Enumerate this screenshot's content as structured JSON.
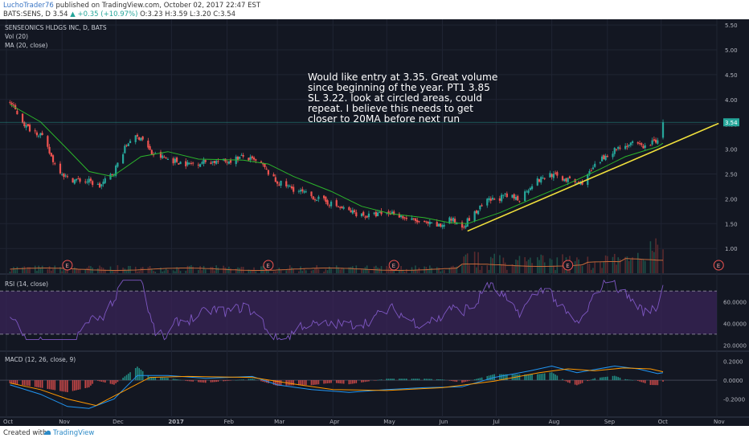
{
  "header": {
    "author": "LuchoTrader76",
    "published_text": "published on TradingView.com, October 02, 2017 22:47 EST",
    "symbol": "BATS:SENS, D",
    "last": "3.54",
    "change": "+0.35 (+10.97%)",
    "ohlc": "O:3.23 H:3.59 L:3.20 C:3.54"
  },
  "legend": {
    "title": "SENSEONICS HLDGS INC, D, BATS",
    "vol": "Vol (20)",
    "ma": "MA (20, close)",
    "rsi": "RSI (14, close)",
    "macd": "MACD (12, 26, close, 9)"
  },
  "annotation": "Would like entry at 3.35. Great volume since beginning of the year. PT1 3.85 SL 3.22. look at circled areas, could repeat. I believe this needs to get closer to 20MA before next run",
  "price_tag": "3.54",
  "earnings_marker": "E",
  "footer": {
    "created_with": "Created with",
    "brand": "TradingView"
  },
  "colors": {
    "background": "#131722",
    "up": "#26a69a",
    "down": "#ef5350",
    "ma": "#2bb52b",
    "trendline": "#f0e03c",
    "rsi": "#7e57c2",
    "macd": "#2196f3",
    "signal": "#ff9800"
  },
  "chart_data": {
    "type": "candlestick",
    "title": "SENSEONICS HLDGS INC, D, BATS",
    "x_ticks": [
      "Oct",
      "Nov",
      "Dec",
      "2017",
      "Feb",
      "Mar",
      "Apr",
      "May",
      "Jun",
      "Jul",
      "Aug",
      "Sep",
      "Oct",
      "Nov"
    ],
    "price_axis": [
      "5.50",
      "5.00",
      "4.50",
      "4.00",
      "3.50",
      "3.00",
      "2.50",
      "2.00",
      "1.50",
      "1.00"
    ],
    "ylim": [
      0.55,
      5.55
    ],
    "close_path": [
      [
        "2016-10-03",
        3.95
      ],
      [
        "2016-10-12",
        3.45
      ],
      [
        "2016-10-20",
        3.3
      ],
      [
        "2016-10-28",
        2.7
      ],
      [
        "2016-11-04",
        2.4
      ],
      [
        "2016-11-16",
        2.35
      ],
      [
        "2016-11-22",
        2.25
      ],
      [
        "2016-11-30",
        2.55
      ],
      [
        "2016-12-05",
        2.95
      ],
      [
        "2016-12-09",
        3.2
      ],
      [
        "2016-12-15",
        3.25
      ],
      [
        "2016-12-21",
        2.9
      ],
      [
        "2016-12-30",
        2.8
      ],
      [
        "2017-01-10",
        2.7
      ],
      [
        "2017-01-20",
        2.75
      ],
      [
        "2017-01-31",
        2.75
      ],
      [
        "2017-02-10",
        2.85
      ],
      [
        "2017-02-20",
        2.7
      ],
      [
        "2017-02-28",
        2.35
      ],
      [
        "2017-03-10",
        2.2
      ],
      [
        "2017-03-20",
        2.05
      ],
      [
        "2017-03-31",
        1.9
      ],
      [
        "2017-04-10",
        1.75
      ],
      [
        "2017-04-20",
        1.65
      ],
      [
        "2017-04-28",
        1.7
      ],
      [
        "2017-05-05",
        1.72
      ],
      [
        "2017-05-12",
        1.6
      ],
      [
        "2017-05-22",
        1.5
      ],
      [
        "2017-05-31",
        1.45
      ],
      [
        "2017-06-05",
        1.6
      ],
      [
        "2017-06-12",
        1.45
      ],
      [
        "2017-06-19",
        1.7
      ],
      [
        "2017-06-26",
        1.95
      ],
      [
        "2017-07-06",
        2.05
      ],
      [
        "2017-07-14",
        2.0
      ],
      [
        "2017-07-21",
        2.3
      ],
      [
        "2017-07-31",
        2.5
      ],
      [
        "2017-08-08",
        2.4
      ],
      [
        "2017-08-17",
        2.3
      ],
      [
        "2017-08-25",
        2.65
      ],
      [
        "2017-09-01",
        2.9
      ],
      [
        "2017-09-08",
        3.05
      ],
      [
        "2017-09-15",
        3.1
      ],
      [
        "2017-09-22",
        3.05
      ],
      [
        "2017-09-29",
        3.2
      ],
      [
        "2017-10-02",
        3.54
      ]
    ],
    "ma_path": [
      [
        "2016-10-03",
        3.9
      ],
      [
        "2016-10-20",
        3.55
      ],
      [
        "2016-11-04",
        3.0
      ],
      [
        "2016-11-16",
        2.55
      ],
      [
        "2016-11-29",
        2.45
      ],
      [
        "2016-12-15",
        2.85
      ],
      [
        "2016-12-30",
        2.95
      ],
      [
        "2017-01-16",
        2.8
      ],
      [
        "2017-02-10",
        2.78
      ],
      [
        "2017-02-24",
        2.7
      ],
      [
        "2017-03-10",
        2.45
      ],
      [
        "2017-03-31",
        2.15
      ],
      [
        "2017-04-17",
        1.85
      ],
      [
        "2017-05-03",
        1.7
      ],
      [
        "2017-05-22",
        1.62
      ],
      [
        "2017-06-05",
        1.52
      ],
      [
        "2017-06-15",
        1.5
      ],
      [
        "2017-07-03",
        1.72
      ],
      [
        "2017-07-21",
        2.0
      ],
      [
        "2017-08-10",
        2.3
      ],
      [
        "2017-08-28",
        2.6
      ],
      [
        "2017-09-11",
        2.85
      ],
      [
        "2017-09-29",
        3.05
      ],
      [
        "2017-10-02",
        3.12
      ]
    ],
    "trendline": [
      [
        "2017-06-15",
        1.35
      ],
      [
        "2017-11-02",
        3.52
      ]
    ],
    "last_close": 3.54,
    "earnings_dates": [
      "2016-11-04",
      "2017-02-24",
      "2017-05-05",
      "2017-08-10",
      "2017-11-02"
    ],
    "rsi": {
      "axis": [
        "60.0000",
        "40.0000",
        "20.0000"
      ],
      "ylim": [
        15,
        85
      ],
      "bands": [
        70,
        30
      ]
    },
    "macd": {
      "axis": [
        "0.2000",
        "0.0000",
        "-0.2000"
      ],
      "ylim": [
        -0.35,
        0.3
      ],
      "macd_path": [
        [
          "2016-10-03",
          -0.05
        ],
        [
          "2016-10-20",
          -0.15
        ],
        [
          "2016-11-04",
          -0.28
        ],
        [
          "2016-11-16",
          -0.3
        ],
        [
          "2016-11-30",
          -0.2
        ],
        [
          "2016-12-13",
          0.05
        ],
        [
          "2016-12-30",
          0.05
        ],
        [
          "2017-01-20",
          0.02
        ],
        [
          "2017-02-15",
          0.04
        ],
        [
          "2017-03-01",
          -0.05
        ],
        [
          "2017-03-20",
          -0.1
        ],
        [
          "2017-04-10",
          -0.13
        ],
        [
          "2017-05-01",
          -0.1
        ],
        [
          "2017-05-22",
          -0.08
        ],
        [
          "2017-06-12",
          -0.07
        ],
        [
          "2017-06-30",
          0.03
        ],
        [
          "2017-07-20",
          0.1
        ],
        [
          "2017-08-01",
          0.15
        ],
        [
          "2017-08-15",
          0.08
        ],
        [
          "2017-09-05",
          0.15
        ],
        [
          "2017-09-18",
          0.12
        ],
        [
          "2017-09-29",
          0.07
        ],
        [
          "2017-10-02",
          0.08
        ]
      ],
      "signal_path": [
        [
          "2016-10-03",
          -0.03
        ],
        [
          "2016-10-20",
          -0.1
        ],
        [
          "2016-11-04",
          -0.2
        ],
        [
          "2016-11-20",
          -0.27
        ],
        [
          "2016-12-05",
          -0.12
        ],
        [
          "2016-12-20",
          0.03
        ],
        [
          "2017-01-10",
          0.04
        ],
        [
          "2017-02-15",
          0.03
        ],
        [
          "2017-03-10",
          -0.04
        ],
        [
          "2017-04-01",
          -0.1
        ],
        [
          "2017-05-01",
          -0.11
        ],
        [
          "2017-06-01",
          -0.08
        ],
        [
          "2017-06-30",
          -0.01
        ],
        [
          "2017-07-25",
          0.08
        ],
        [
          "2017-08-10",
          0.12
        ],
        [
          "2017-08-25",
          0.1
        ],
        [
          "2017-09-10",
          0.13
        ],
        [
          "2017-09-25",
          0.12
        ],
        [
          "2017-10-02",
          0.09
        ]
      ]
    }
  }
}
